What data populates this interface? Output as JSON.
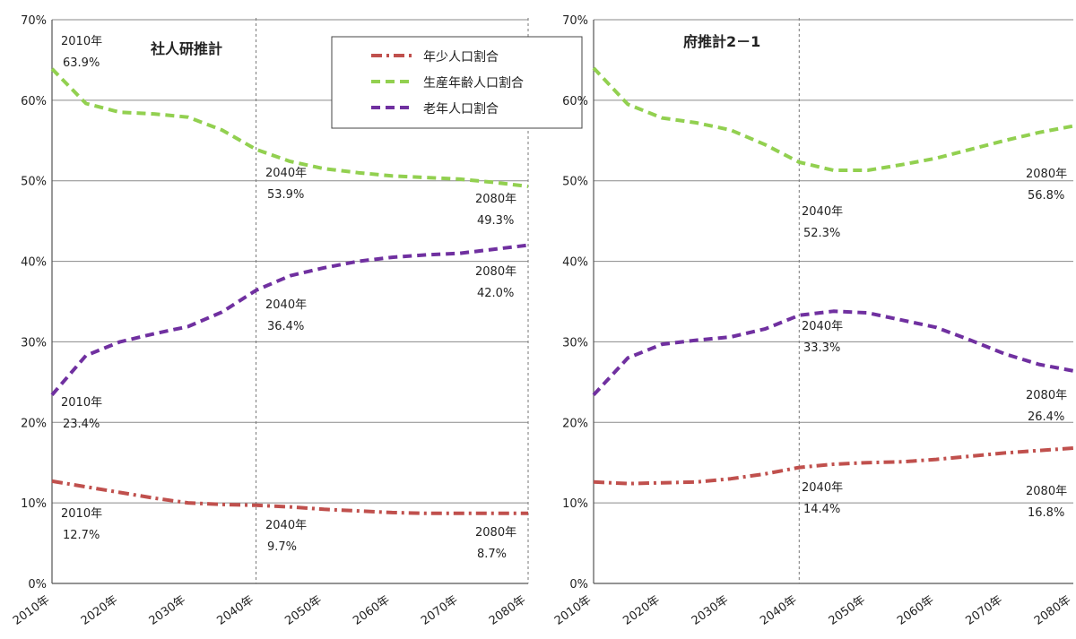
{
  "chart_data": [
    {
      "type": "line",
      "title": "社人研推計",
      "xlabel": "",
      "ylabel": "",
      "categories": [
        "2010年",
        "2020年",
        "2030年",
        "2040年",
        "2050年",
        "2060年",
        "2070年",
        "2080年"
      ],
      "ylim": [
        0,
        70
      ],
      "y_ticks": [
        "0%",
        "10%",
        "20%",
        "30%",
        "40%",
        "50%",
        "60%",
        "70%"
      ],
      "grid": true,
      "legend_position": "top-right",
      "reference_lines": [
        "2040年",
        "2080年"
      ],
      "series": [
        {
          "name": "年少人口割合",
          "color": "#c0504d",
          "style": "dash-dot",
          "x": [
            2010,
            2015,
            2020,
            2025,
            2030,
            2035,
            2040,
            2045,
            2050,
            2055,
            2060,
            2065,
            2070,
            2075,
            2080
          ],
          "values": [
            12.7,
            12.0,
            11.3,
            10.6,
            10.0,
            9.8,
            9.7,
            9.5,
            9.2,
            9.0,
            8.8,
            8.7,
            8.7,
            8.7,
            8.7
          ]
        },
        {
          "name": "生産年齢人口割合",
          "color": "#92d050",
          "style": "dash",
          "x": [
            2010,
            2015,
            2020,
            2025,
            2030,
            2035,
            2040,
            2045,
            2050,
            2055,
            2060,
            2065,
            2070,
            2075,
            2080
          ],
          "values": [
            63.9,
            59.6,
            58.5,
            58.3,
            57.9,
            56.3,
            53.9,
            52.4,
            51.5,
            51.0,
            50.6,
            50.4,
            50.2,
            49.8,
            49.3
          ]
        },
        {
          "name": "老年人口割合",
          "color": "#7030a0",
          "style": "dash",
          "x": [
            2010,
            2015,
            2020,
            2025,
            2030,
            2035,
            2040,
            2045,
            2050,
            2055,
            2060,
            2065,
            2070,
            2075,
            2080
          ],
          "values": [
            23.4,
            28.3,
            30.0,
            31.0,
            31.9,
            33.7,
            36.4,
            38.2,
            39.2,
            40.0,
            40.5,
            40.8,
            41.0,
            41.5,
            42.0
          ]
        }
      ],
      "annotations": [
        {
          "year": "2010年",
          "value": "63.9%"
        },
        {
          "year": "2040年",
          "value": "53.9%"
        },
        {
          "year": "2080年",
          "value": "49.3%"
        },
        {
          "year": "2080年",
          "value": "42.0%"
        },
        {
          "year": "2040年",
          "value": "36.4%"
        },
        {
          "year": "2010年",
          "value": "23.4%"
        },
        {
          "year": "2010年",
          "value": "12.7%"
        },
        {
          "year": "2040年",
          "value": "9.7%"
        },
        {
          "year": "2080年",
          "value": "8.7%"
        }
      ]
    },
    {
      "type": "line",
      "title": "府推計2－1",
      "xlabel": "",
      "ylabel": "",
      "categories": [
        "2010年",
        "2020年",
        "2030年",
        "2040年",
        "2050年",
        "2060年",
        "2070年",
        "2080年"
      ],
      "ylim": [
        0,
        70
      ],
      "y_ticks": [
        "0%",
        "10%",
        "20%",
        "30%",
        "40%",
        "50%",
        "60%",
        "70%"
      ],
      "grid": true,
      "reference_lines": [
        "2040年"
      ],
      "series": [
        {
          "name": "年少人口割合",
          "color": "#c0504d",
          "style": "dash-dot",
          "x": [
            2010,
            2015,
            2020,
            2025,
            2030,
            2035,
            2040,
            2045,
            2050,
            2055,
            2060,
            2065,
            2070,
            2075,
            2080
          ],
          "values": [
            12.6,
            12.4,
            12.5,
            12.6,
            13.0,
            13.6,
            14.4,
            14.8,
            15.0,
            15.1,
            15.4,
            15.8,
            16.2,
            16.5,
            16.8
          ]
        },
        {
          "name": "生産年齢人口割合",
          "color": "#92d050",
          "style": "dash",
          "x": [
            2010,
            2015,
            2020,
            2025,
            2030,
            2035,
            2040,
            2045,
            2050,
            2055,
            2060,
            2065,
            2070,
            2075,
            2080
          ],
          "values": [
            64.0,
            59.5,
            57.8,
            57.2,
            56.3,
            54.5,
            52.3,
            51.3,
            51.3,
            52.0,
            52.8,
            53.9,
            55.0,
            56.0,
            56.8
          ]
        },
        {
          "name": "老年人口割合",
          "color": "#7030a0",
          "style": "dash",
          "x": [
            2010,
            2015,
            2020,
            2025,
            2030,
            2035,
            2040,
            2045,
            2050,
            2055,
            2060,
            2065,
            2070,
            2075,
            2080
          ],
          "values": [
            23.4,
            28.0,
            29.7,
            30.2,
            30.6,
            31.6,
            33.3,
            33.8,
            33.6,
            32.7,
            31.8,
            30.2,
            28.5,
            27.2,
            26.4
          ]
        }
      ],
      "annotations": [
        {
          "year": "2040年",
          "value": "52.3%"
        },
        {
          "year": "2080年",
          "value": "56.8%"
        },
        {
          "year": "2040年",
          "value": "33.3%"
        },
        {
          "year": "2080年",
          "value": "26.4%"
        },
        {
          "year": "2040年",
          "value": "14.4%"
        },
        {
          "year": "2080年",
          "value": "16.8%"
        }
      ]
    }
  ]
}
